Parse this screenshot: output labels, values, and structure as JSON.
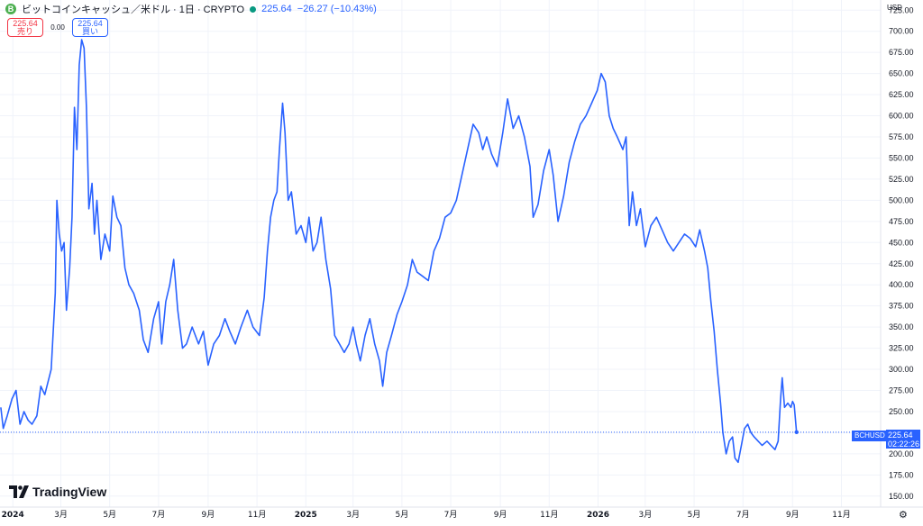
{
  "header": {
    "logo_glyph": "B",
    "symbol_title": "ビットコインキャッシュ／米ドル · 1日 · CRYPTO",
    "price": "225.64",
    "change": "−26.27 (−10.43%)"
  },
  "trade": {
    "sell_price": "225.64",
    "sell_label": "売り",
    "spread": "0.00",
    "buy_price": "225.64",
    "buy_label": "買い"
  },
  "brand": {
    "name": "TradingView",
    "icon": "tradingview-logo-icon"
  },
  "price_scale": {
    "currency": "USD"
  },
  "last_price": {
    "symbol": "BCHUSD",
    "value": "225.64",
    "countdown": "02:22:26"
  },
  "colors": {
    "line": "#2962ff",
    "sell": "#f23645",
    "buy": "#2962ff",
    "up": "#089981"
  },
  "chart_data": {
    "type": "line",
    "title": "ビットコインキャッシュ／米ドル · 1日 · CRYPTO",
    "xlabel": "",
    "ylabel": "USD",
    "ylim": [
      137,
      737
    ],
    "xlim": [
      "2023-12-16",
      "2026-12-20"
    ],
    "grid": true,
    "y_ticks": [
      150,
      175,
      200,
      225,
      250,
      275,
      300,
      325,
      350,
      375,
      400,
      425,
      450,
      475,
      500,
      525,
      550,
      575,
      600,
      625,
      650,
      675,
      700,
      725
    ],
    "x_ticks": [
      {
        "date": "2024-01-01",
        "label": "2024"
      },
      {
        "date": "2024-03-01",
        "label": "3月"
      },
      {
        "date": "2024-05-01",
        "label": "5月"
      },
      {
        "date": "2024-07-01",
        "label": "7月"
      },
      {
        "date": "2024-09-01",
        "label": "9月"
      },
      {
        "date": "2024-11-01",
        "label": "11月"
      },
      {
        "date": "2025-01-01",
        "label": "2025"
      },
      {
        "date": "2025-03-01",
        "label": "3月"
      },
      {
        "date": "2025-05-01",
        "label": "5月"
      },
      {
        "date": "2025-07-01",
        "label": "7月"
      },
      {
        "date": "2025-09-01",
        "label": "9月"
      },
      {
        "date": "2025-11-01",
        "label": "11月"
      },
      {
        "date": "2026-01-01",
        "label": "2026"
      },
      {
        "date": "2026-03-01",
        "label": "3月"
      },
      {
        "date": "2026-05-01",
        "label": "5月"
      },
      {
        "date": "2026-07-01",
        "label": "7月"
      },
      {
        "date": "2026-09-01",
        "label": "9月"
      },
      {
        "date": "2026-11-01",
        "label": "11月"
      }
    ],
    "series": [
      {
        "name": "BCHUSD",
        "points": [
          [
            "2023-12-17",
            255
          ],
          [
            "2023-12-20",
            230
          ],
          [
            "2023-12-25",
            245
          ],
          [
            "2023-12-31",
            265
          ],
          [
            "2024-01-05",
            275
          ],
          [
            "2024-01-10",
            235
          ],
          [
            "2024-01-15",
            250
          ],
          [
            "2024-01-20",
            240
          ],
          [
            "2024-01-25",
            235
          ],
          [
            "2024-01-31",
            245
          ],
          [
            "2024-02-05",
            280
          ],
          [
            "2024-02-10",
            270
          ],
          [
            "2024-02-18",
            300
          ],
          [
            "2024-02-23",
            390
          ],
          [
            "2024-02-25",
            500
          ],
          [
            "2024-02-28",
            460
          ],
          [
            "2024-03-02",
            440
          ],
          [
            "2024-03-05",
            450
          ],
          [
            "2024-03-08",
            370
          ],
          [
            "2024-03-12",
            420
          ],
          [
            "2024-03-15",
            480
          ],
          [
            "2024-03-18",
            610
          ],
          [
            "2024-03-21",
            560
          ],
          [
            "2024-03-24",
            660
          ],
          [
            "2024-03-27",
            690
          ],
          [
            "2024-03-30",
            680
          ],
          [
            "2024-04-02",
            610
          ],
          [
            "2024-04-05",
            490
          ],
          [
            "2024-04-09",
            520
          ],
          [
            "2024-04-12",
            460
          ],
          [
            "2024-04-15",
            500
          ],
          [
            "2024-04-20",
            430
          ],
          [
            "2024-04-25",
            460
          ],
          [
            "2024-05-01",
            440
          ],
          [
            "2024-05-05",
            505
          ],
          [
            "2024-05-10",
            480
          ],
          [
            "2024-05-15",
            470
          ],
          [
            "2024-05-20",
            420
          ],
          [
            "2024-05-25",
            400
          ],
          [
            "2024-05-31",
            390
          ],
          [
            "2024-06-07",
            370
          ],
          [
            "2024-06-12",
            335
          ],
          [
            "2024-06-18",
            320
          ],
          [
            "2024-06-25",
            360
          ],
          [
            "2024-07-01",
            380
          ],
          [
            "2024-07-05",
            330
          ],
          [
            "2024-07-10",
            380
          ],
          [
            "2024-07-15",
            400
          ],
          [
            "2024-07-20",
            430
          ],
          [
            "2024-07-25",
            370
          ],
          [
            "2024-07-31",
            325
          ],
          [
            "2024-08-05",
            330
          ],
          [
            "2024-08-12",
            350
          ],
          [
            "2024-08-20",
            330
          ],
          [
            "2024-08-26",
            345
          ],
          [
            "2024-09-01",
            305
          ],
          [
            "2024-09-08",
            330
          ],
          [
            "2024-09-15",
            340
          ],
          [
            "2024-09-22",
            360
          ],
          [
            "2024-09-28",
            345
          ],
          [
            "2024-10-05",
            330
          ],
          [
            "2024-10-12",
            350
          ],
          [
            "2024-10-20",
            370
          ],
          [
            "2024-10-27",
            350
          ],
          [
            "2024-11-04",
            340
          ],
          [
            "2024-11-10",
            385
          ],
          [
            "2024-11-14",
            440
          ],
          [
            "2024-11-18",
            480
          ],
          [
            "2024-11-22",
            500
          ],
          [
            "2024-11-26",
            510
          ],
          [
            "2024-11-29",
            560
          ],
          [
            "2024-12-03",
            615
          ],
          [
            "2024-12-06",
            580
          ],
          [
            "2024-12-10",
            500
          ],
          [
            "2024-12-14",
            510
          ],
          [
            "2024-12-20",
            460
          ],
          [
            "2024-12-26",
            470
          ],
          [
            "2025-01-01",
            450
          ],
          [
            "2025-01-05",
            480
          ],
          [
            "2025-01-10",
            440
          ],
          [
            "2025-01-15",
            450
          ],
          [
            "2025-01-20",
            480
          ],
          [
            "2025-01-26",
            430
          ],
          [
            "2025-02-01",
            395
          ],
          [
            "2025-02-06",
            340
          ],
          [
            "2025-02-12",
            330
          ],
          [
            "2025-02-18",
            320
          ],
          [
            "2025-02-24",
            330
          ],
          [
            "2025-03-01",
            350
          ],
          [
            "2025-03-05",
            330
          ],
          [
            "2025-03-10",
            310
          ],
          [
            "2025-03-16",
            340
          ],
          [
            "2025-03-22",
            360
          ],
          [
            "2025-03-28",
            330
          ],
          [
            "2025-04-03",
            310
          ],
          [
            "2025-04-07",
            280
          ],
          [
            "2025-04-12",
            320
          ],
          [
            "2025-04-18",
            340
          ],
          [
            "2025-04-25",
            365
          ],
          [
            "2025-05-01",
            380
          ],
          [
            "2025-05-08",
            400
          ],
          [
            "2025-05-14",
            430
          ],
          [
            "2025-05-20",
            415
          ],
          [
            "2025-05-27",
            410
          ],
          [
            "2025-06-03",
            405
          ],
          [
            "2025-06-10",
            440
          ],
          [
            "2025-06-17",
            455
          ],
          [
            "2025-06-24",
            480
          ],
          [
            "2025-07-01",
            485
          ],
          [
            "2025-07-08",
            500
          ],
          [
            "2025-07-15",
            530
          ],
          [
            "2025-07-22",
            560
          ],
          [
            "2025-07-29",
            590
          ],
          [
            "2025-08-05",
            580
          ],
          [
            "2025-08-10",
            560
          ],
          [
            "2025-08-15",
            575
          ],
          [
            "2025-08-21",
            555
          ],
          [
            "2025-08-28",
            540
          ],
          [
            "2025-09-04",
            580
          ],
          [
            "2025-09-10",
            620
          ],
          [
            "2025-09-17",
            585
          ],
          [
            "2025-09-24",
            600
          ],
          [
            "2025-10-01",
            575
          ],
          [
            "2025-10-08",
            540
          ],
          [
            "2025-10-12",
            480
          ],
          [
            "2025-10-18",
            495
          ],
          [
            "2025-10-25",
            535
          ],
          [
            "2025-11-01",
            560
          ],
          [
            "2025-11-06",
            530
          ],
          [
            "2025-11-12",
            475
          ],
          [
            "2025-11-19",
            505
          ],
          [
            "2025-11-26",
            545
          ],
          [
            "2025-12-03",
            570
          ],
          [
            "2025-12-10",
            590
          ],
          [
            "2025-12-17",
            600
          ],
          [
            "2025-12-24",
            615
          ],
          [
            "2025-12-31",
            630
          ],
          [
            "2026-01-05",
            650
          ],
          [
            "2026-01-10",
            640
          ],
          [
            "2026-01-15",
            600
          ],
          [
            "2026-01-20",
            585
          ],
          [
            "2026-01-25",
            575
          ],
          [
            "2026-02-01",
            560
          ],
          [
            "2026-02-05",
            575
          ],
          [
            "2026-02-09",
            470
          ],
          [
            "2026-02-13",
            510
          ],
          [
            "2026-02-18",
            470
          ],
          [
            "2026-02-23",
            490
          ],
          [
            "2026-03-01",
            445
          ],
          [
            "2026-03-08",
            470
          ],
          [
            "2026-03-15",
            480
          ],
          [
            "2026-03-22",
            465
          ],
          [
            "2026-03-29",
            450
          ],
          [
            "2026-04-05",
            440
          ],
          [
            "2026-04-12",
            450
          ],
          [
            "2026-04-19",
            460
          ],
          [
            "2026-04-26",
            455
          ],
          [
            "2026-05-03",
            445
          ],
          [
            "2026-05-08",
            465
          ],
          [
            "2026-05-14",
            440
          ],
          [
            "2026-05-18",
            420
          ],
          [
            "2026-05-22",
            380
          ],
          [
            "2026-05-26",
            345
          ],
          [
            "2026-05-30",
            300
          ],
          [
            "2026-06-03",
            260
          ],
          [
            "2026-06-06",
            225
          ],
          [
            "2026-06-10",
            200
          ],
          [
            "2026-06-14",
            215
          ],
          [
            "2026-06-18",
            220
          ],
          [
            "2026-06-21",
            195
          ],
          [
            "2026-06-25",
            190
          ],
          [
            "2026-06-29",
            210
          ],
          [
            "2026-07-03",
            230
          ],
          [
            "2026-07-07",
            235
          ],
          [
            "2026-07-11",
            225
          ],
          [
            "2026-07-15",
            220
          ],
          [
            "2026-07-20",
            215
          ],
          [
            "2026-07-25",
            210
          ],
          [
            "2026-07-31",
            215
          ],
          [
            "2026-08-05",
            210
          ],
          [
            "2026-08-10",
            205
          ],
          [
            "2026-08-14",
            215
          ],
          [
            "2026-08-17",
            265
          ],
          [
            "2026-08-19",
            290
          ],
          [
            "2026-08-22",
            255
          ],
          [
            "2026-08-26",
            260
          ],
          [
            "2026-08-30",
            255
          ],
          [
            "2026-09-01",
            262
          ],
          [
            "2026-09-03",
            258
          ],
          [
            "2026-09-06",
            225.64
          ]
        ]
      }
    ]
  }
}
